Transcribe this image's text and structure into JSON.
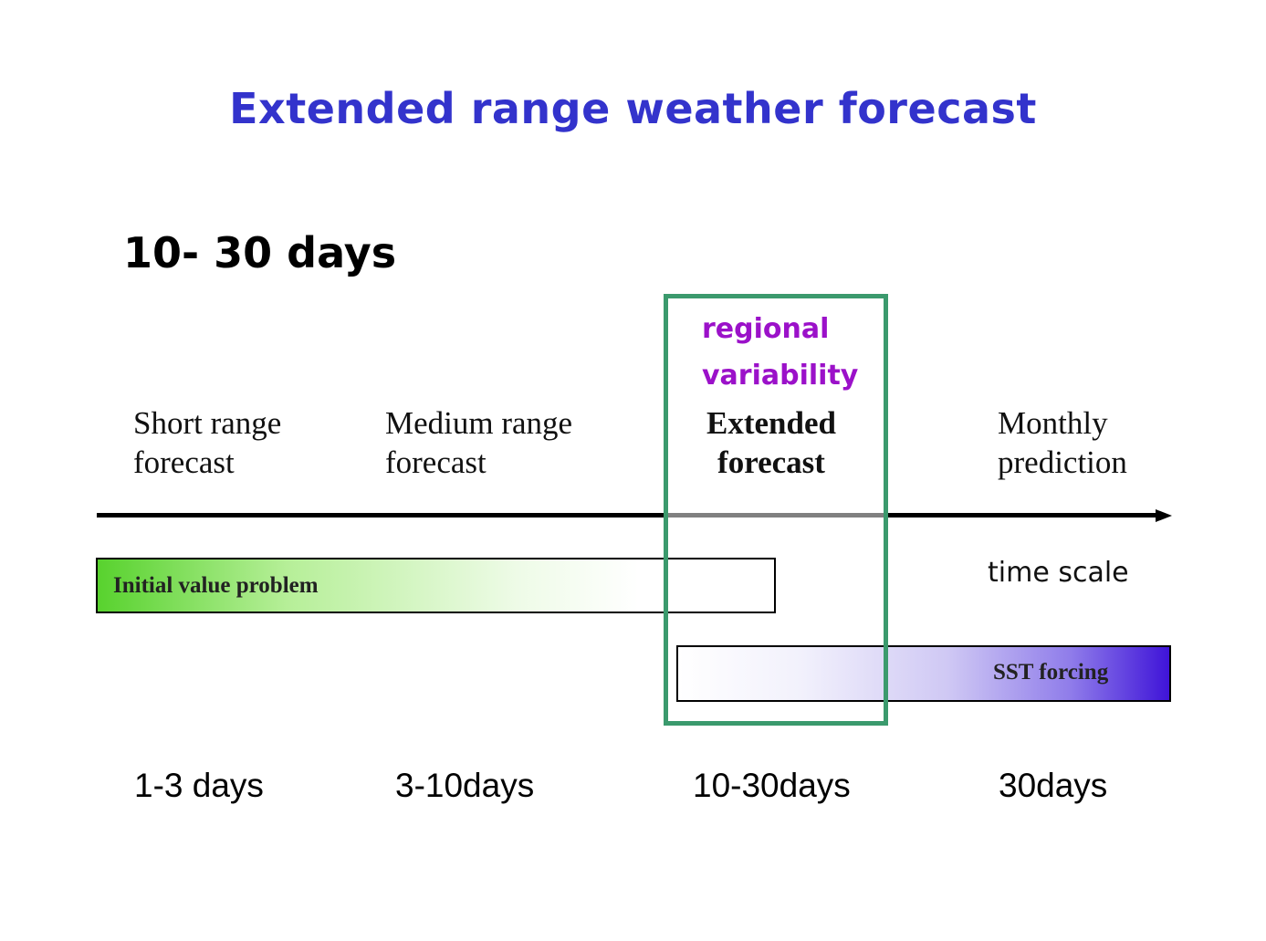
{
  "title": "Extended range weather forecast",
  "subtitle": "10- 30 days",
  "highlight": {
    "line1": "regional",
    "line2": "variability",
    "color": "#9b11c9",
    "box_color": "#3b9a6d"
  },
  "categories": [
    {
      "line1": "Short range",
      "line2": "forecast",
      "range": "1-3 days"
    },
    {
      "line1": "Medium range",
      "line2": "forecast",
      "range": "3-10days"
    },
    {
      "line1": "Extended",
      "line2": "forecast",
      "range": "10-30days"
    },
    {
      "line1": "Monthly",
      "line2": "prediction",
      "range": "30days"
    }
  ],
  "axis_label": "time scale",
  "bars": {
    "initial_value": {
      "label": "Initial value problem",
      "color": "#58d22e"
    },
    "sst": {
      "label": "SST forcing",
      "color": "#3f14d8"
    }
  },
  "colors": {
    "title": "#3333cc"
  }
}
